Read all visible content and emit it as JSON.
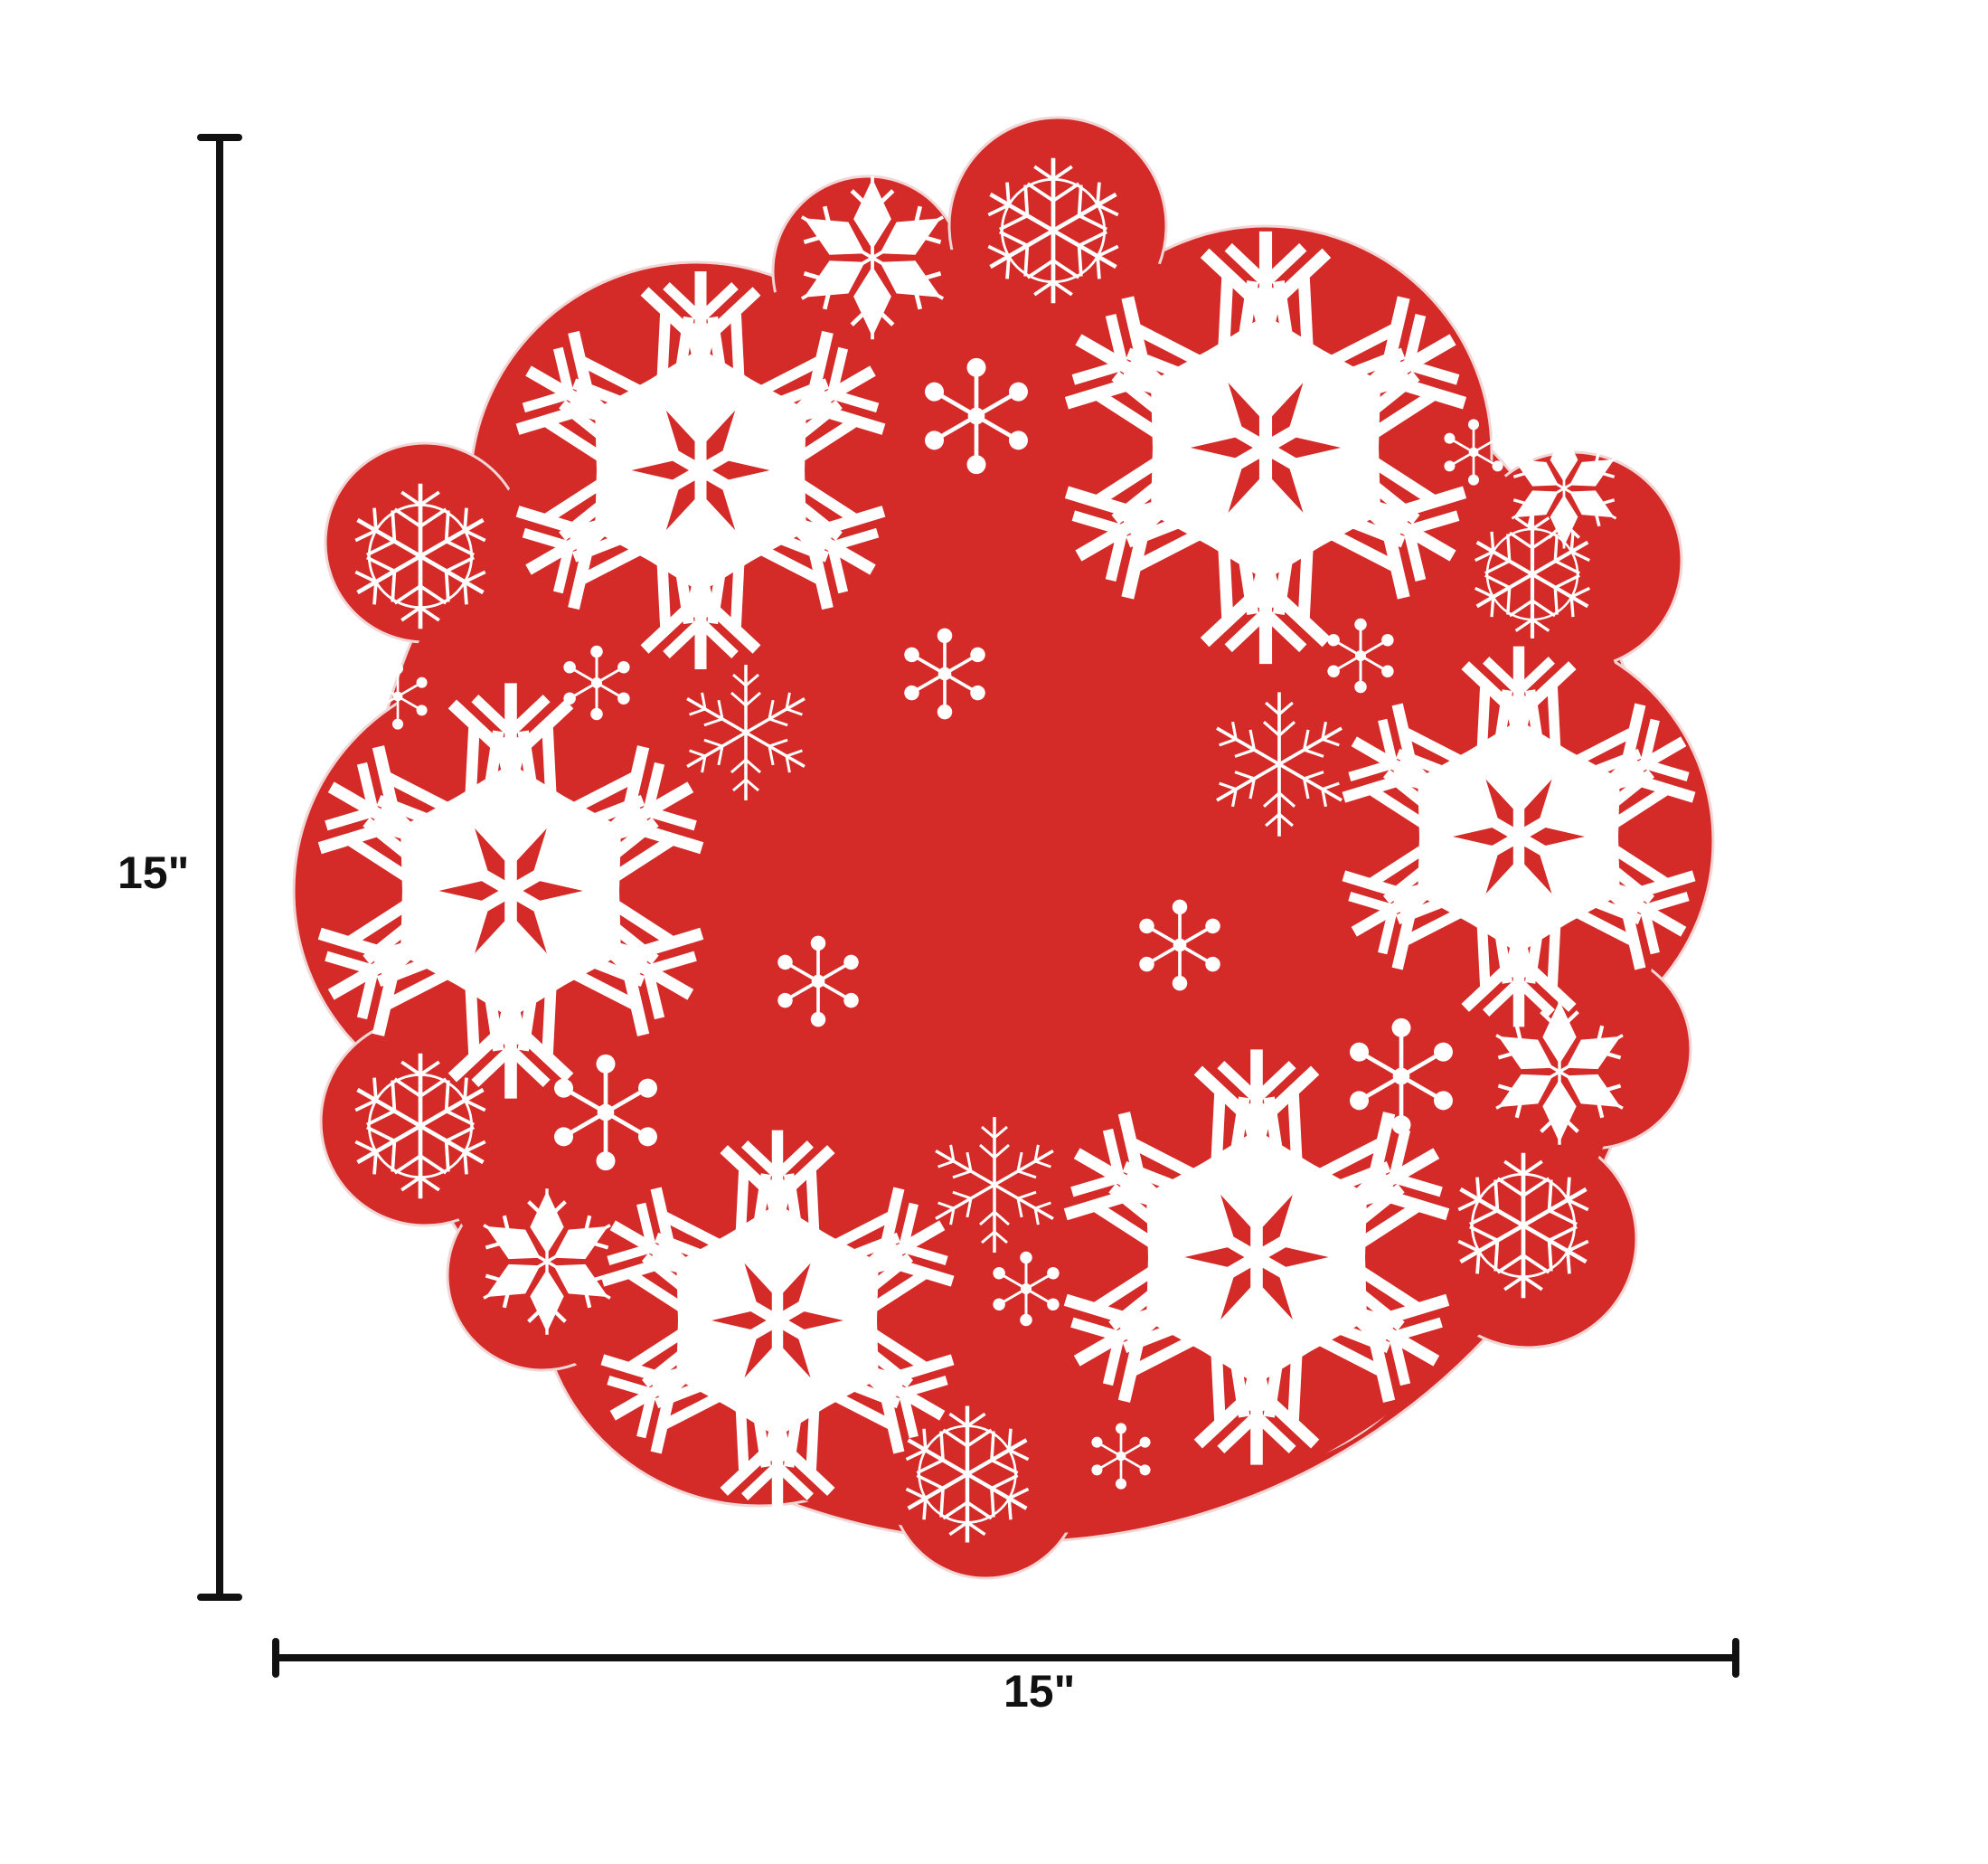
{
  "dimensions": {
    "height_label": "15\"",
    "width_label": "15\""
  },
  "product": {
    "name": "round-snowflake-doily",
    "fabric_color": "#d42a28",
    "edge_color": "#b81f1f",
    "embroidery_color": "#ffffff",
    "dimension_line_color": "#111111"
  }
}
